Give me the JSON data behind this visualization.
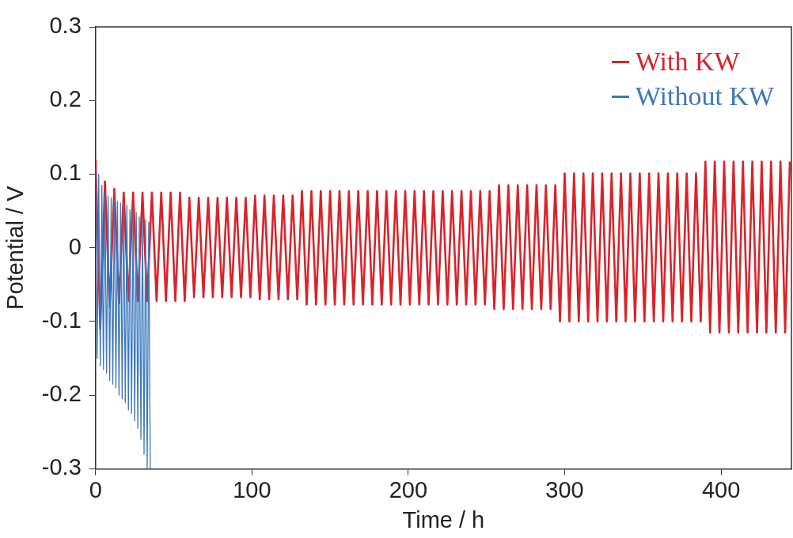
{
  "chart_data": {
    "type": "line",
    "xlabel": "Time / h",
    "ylabel": "Potential / V",
    "xlim": [
      0,
      445
    ],
    "xticks": [
      0,
      100,
      200,
      300,
      400
    ],
    "ylim": [
      -0.3,
      0.3
    ],
    "yticks": [
      -0.3,
      -0.2,
      -0.1,
      0,
      0.1,
      0.2,
      0.3
    ],
    "grid": false,
    "legend": "top right",
    "marker": "none",
    "line_style": "solid",
    "series": [
      {
        "name": "With KW",
        "color": "#d9232a",
        "x": [
          0,
          3,
          6,
          9,
          12,
          15,
          18,
          21,
          24,
          27,
          30,
          33,
          36,
          39,
          42,
          45,
          48,
          51,
          54,
          57,
          60,
          63,
          66,
          69,
          72,
          75,
          78,
          81,
          84,
          87,
          90,
          93,
          96,
          99,
          102,
          105,
          108,
          111,
          114,
          117,
          120,
          123,
          126,
          129,
          132,
          135,
          138,
          141,
          144,
          147,
          150,
          153,
          156,
          159,
          162,
          165,
          168,
          171,
          174,
          177,
          180,
          183,
          186,
          189,
          192,
          195,
          198,
          201,
          204,
          207,
          210,
          213,
          216,
          219,
          222,
          225,
          228,
          231,
          234,
          237,
          240,
          243,
          246,
          249,
          252,
          255,
          258,
          261,
          264,
          267,
          270,
          273,
          276,
          279,
          282,
          285,
          288,
          291,
          294,
          297,
          300,
          303,
          306,
          309,
          312,
          315,
          318,
          321,
          324,
          327,
          330,
          333,
          336,
          339,
          342,
          345,
          348,
          351,
          354,
          357,
          360,
          363,
          366,
          369,
          372,
          375,
          378,
          381,
          384,
          387,
          390,
          393,
          396,
          399,
          402,
          405,
          408,
          411,
          414,
          417,
          420,
          423,
          426,
          429,
          432,
          435,
          438,
          441,
          444
        ],
        "values": [
          0.12,
          -0.11,
          0.09,
          -0.08,
          0.08,
          -0.075,
          0.075,
          -0.072,
          0.075,
          -0.072,
          0.075,
          -0.072,
          0.075,
          -0.072,
          0.075,
          -0.072,
          0.075,
          -0.072,
          0.075,
          -0.072,
          0.068,
          -0.067,
          0.068,
          -0.067,
          0.068,
          -0.067,
          0.068,
          -0.067,
          0.068,
          -0.067,
          0.068,
          -0.067,
          0.068,
          -0.067,
          0.071,
          -0.07,
          0.071,
          -0.07,
          0.071,
          -0.07,
          0.071,
          -0.07,
          0.071,
          -0.07,
          0.077,
          -0.077,
          0.077,
          -0.077,
          0.077,
          -0.077,
          0.077,
          -0.077,
          0.077,
          -0.077,
          0.077,
          -0.077,
          0.077,
          -0.077,
          0.077,
          -0.077,
          0.077,
          -0.077,
          0.077,
          -0.077,
          0.077,
          -0.077,
          0.077,
          -0.077,
          0.077,
          -0.077,
          0.077,
          -0.077,
          0.077,
          -0.077,
          0.077,
          -0.077,
          0.077,
          -0.077,
          0.077,
          -0.077,
          0.077,
          -0.077,
          0.077,
          -0.077,
          0.077,
          -0.083,
          0.085,
          -0.083,
          0.085,
          -0.083,
          0.085,
          -0.083,
          0.085,
          -0.083,
          0.085,
          -0.083,
          0.085,
          -0.083,
          0.085,
          -0.1,
          0.101,
          -0.1,
          0.101,
          -0.1,
          0.101,
          -0.1,
          0.101,
          -0.1,
          0.101,
          -0.1,
          0.101,
          -0.1,
          0.101,
          -0.1,
          0.101,
          -0.1,
          0.101,
          -0.1,
          0.101,
          -0.1,
          0.101,
          -0.1,
          0.101,
          -0.1,
          0.101,
          -0.1,
          0.101,
          -0.1,
          0.101,
          -0.1,
          0.117,
          -0.115,
          0.117,
          -0.115,
          0.117,
          -0.115,
          0.117,
          -0.115,
          0.117,
          -0.115,
          0.117,
          -0.115,
          0.117,
          -0.115,
          0.117,
          -0.115,
          0.117,
          -0.115,
          0.117
        ]
      },
      {
        "name": "Without KW",
        "color": "#3c78bd",
        "x": [
          0,
          1,
          2,
          3,
          4,
          5,
          6,
          7,
          8,
          9,
          10,
          11,
          12,
          13,
          14,
          15,
          16,
          17,
          18,
          19,
          20,
          21,
          22,
          23,
          24,
          25,
          26,
          27,
          28,
          29,
          30,
          31,
          32,
          33,
          34,
          35
        ],
        "values": [
          0.11,
          -0.15,
          0.1,
          -0.16,
          0.085,
          -0.165,
          0.075,
          -0.17,
          0.07,
          -0.18,
          0.068,
          -0.185,
          0.065,
          -0.19,
          0.063,
          -0.2,
          0.061,
          -0.205,
          0.06,
          -0.21,
          0.058,
          -0.22,
          0.052,
          -0.225,
          0.05,
          -0.235,
          0.048,
          -0.245,
          0.042,
          -0.26,
          0.04,
          -0.28,
          0.038,
          -0.3,
          0.035,
          -0.3
        ]
      }
    ]
  }
}
